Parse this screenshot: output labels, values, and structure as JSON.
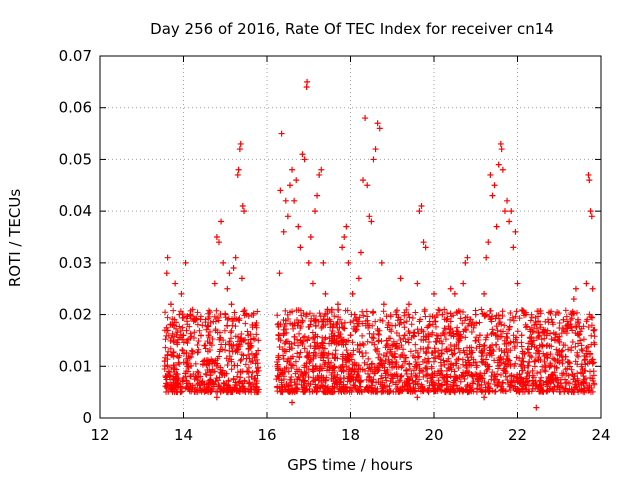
{
  "chart_data": {
    "type": "scatter",
    "title": "Day 256 of 2016, Rate Of TEC Index for receiver cn14",
    "xlabel": "GPS time / hours",
    "ylabel": "ROTI / TECUs",
    "xlim": [
      12,
      24
    ],
    "ylim": [
      0,
      0.07
    ],
    "x_ticks": [
      12,
      14,
      16,
      18,
      20,
      22,
      24
    ],
    "x_tick_labels": [
      "12",
      "14",
      "16",
      "18",
      "20",
      "22",
      "24"
    ],
    "y_ticks": [
      0,
      0.01,
      0.02,
      0.03,
      0.04,
      0.05,
      0.06,
      0.07
    ],
    "y_tick_labels": [
      "0",
      "0.01",
      "0.02",
      "0.03",
      "0.04",
      "0.05",
      "0.06",
      "0.07"
    ],
    "grid": true,
    "marker": "+",
    "series": [
      {
        "name": "ROTI",
        "color": "#ff0000",
        "points": [
          [
            13.55,
            0.011
          ],
          [
            13.6,
            0.028
          ],
          [
            13.62,
            0.031
          ],
          [
            13.65,
            0.009
          ],
          [
            13.7,
            0.022
          ],
          [
            13.75,
            0.018
          ],
          [
            13.8,
            0.026
          ],
          [
            13.85,
            0.012
          ],
          [
            13.9,
            0.02
          ],
          [
            13.95,
            0.024
          ],
          [
            14.0,
            0.016
          ],
          [
            14.05,
            0.03
          ],
          [
            14.1,
            0.01
          ],
          [
            14.2,
            0.013
          ],
          [
            14.3,
            0.019
          ],
          [
            14.4,
            0.008
          ],
          [
            14.5,
            0.014
          ],
          [
            14.6,
            0.016
          ],
          [
            14.7,
            0.011
          ],
          [
            14.75,
            0.026
          ],
          [
            14.8,
            0.035
          ],
          [
            14.85,
            0.034
          ],
          [
            14.9,
            0.038
          ],
          [
            14.95,
            0.03
          ],
          [
            15.0,
            0.02
          ],
          [
            15.05,
            0.025
          ],
          [
            15.1,
            0.028
          ],
          [
            15.15,
            0.022
          ],
          [
            15.2,
            0.029
          ],
          [
            15.25,
            0.031
          ],
          [
            15.3,
            0.047
          ],
          [
            15.32,
            0.048
          ],
          [
            15.35,
            0.052
          ],
          [
            15.37,
            0.053
          ],
          [
            15.4,
            0.027
          ],
          [
            15.42,
            0.041
          ],
          [
            15.45,
            0.04
          ],
          [
            15.5,
            0.02
          ],
          [
            15.55,
            0.016
          ],
          [
            15.6,
            0.014
          ],
          [
            15.65,
            0.018
          ],
          [
            15.7,
            0.012
          ],
          [
            15.75,
            0.009
          ],
          [
            16.25,
            0.01
          ],
          [
            16.3,
            0.028
          ],
          [
            16.32,
            0.044
          ],
          [
            16.35,
            0.055
          ],
          [
            16.4,
            0.036
          ],
          [
            16.45,
            0.042
          ],
          [
            16.5,
            0.039
          ],
          [
            16.55,
            0.045
          ],
          [
            16.6,
            0.048
          ],
          [
            16.65,
            0.042
          ],
          [
            16.7,
            0.046
          ],
          [
            16.75,
            0.037
          ],
          [
            16.8,
            0.033
          ],
          [
            16.85,
            0.051
          ],
          [
            16.9,
            0.05
          ],
          [
            16.95,
            0.064
          ],
          [
            16.96,
            0.065
          ],
          [
            17.0,
            0.03
          ],
          [
            17.05,
            0.035
          ],
          [
            17.1,
            0.026
          ],
          [
            17.15,
            0.04
          ],
          [
            17.2,
            0.043
          ],
          [
            17.25,
            0.047
          ],
          [
            17.3,
            0.048
          ],
          [
            17.35,
            0.03
          ],
          [
            17.4,
            0.024
          ],
          [
            17.45,
            0.021
          ],
          [
            17.5,
            0.019
          ],
          [
            17.6,
            0.015
          ],
          [
            17.7,
            0.022
          ],
          [
            17.8,
            0.033
          ],
          [
            17.85,
            0.035
          ],
          [
            17.9,
            0.037
          ],
          [
            17.95,
            0.03
          ],
          [
            18.0,
            0.016
          ],
          [
            18.05,
            0.024
          ],
          [
            18.1,
            0.02
          ],
          [
            18.15,
            0.019
          ],
          [
            18.2,
            0.027
          ],
          [
            18.25,
            0.032
          ],
          [
            18.3,
            0.046
          ],
          [
            18.35,
            0.058
          ],
          [
            18.4,
            0.045
          ],
          [
            18.45,
            0.039
          ],
          [
            18.5,
            0.038
          ],
          [
            18.55,
            0.05
          ],
          [
            18.6,
            0.052
          ],
          [
            18.65,
            0.057
          ],
          [
            18.7,
            0.056
          ],
          [
            18.75,
            0.03
          ],
          [
            18.8,
            0.022
          ],
          [
            18.9,
            0.018
          ],
          [
            19.0,
            0.014
          ],
          [
            19.1,
            0.02
          ],
          [
            19.2,
            0.027
          ],
          [
            19.3,
            0.016
          ],
          [
            19.4,
            0.022
          ],
          [
            19.5,
            0.012
          ],
          [
            19.6,
            0.026
          ],
          [
            19.65,
            0.04
          ],
          [
            19.7,
            0.041
          ],
          [
            19.75,
            0.034
          ],
          [
            19.8,
            0.033
          ],
          [
            19.9,
            0.018
          ],
          [
            20.0,
            0.024
          ],
          [
            20.1,
            0.012
          ],
          [
            20.2,
            0.02
          ],
          [
            20.3,
            0.019
          ],
          [
            20.4,
            0.025
          ],
          [
            20.5,
            0.024
          ],
          [
            20.6,
            0.016
          ],
          [
            20.7,
            0.026
          ],
          [
            20.75,
            0.03
          ],
          [
            20.8,
            0.031
          ],
          [
            20.9,
            0.018
          ],
          [
            21.0,
            0.02
          ],
          [
            21.1,
            0.016
          ],
          [
            21.2,
            0.024
          ],
          [
            21.25,
            0.031
          ],
          [
            21.3,
            0.034
          ],
          [
            21.35,
            0.047
          ],
          [
            21.4,
            0.043
          ],
          [
            21.45,
            0.045
          ],
          [
            21.5,
            0.037
          ],
          [
            21.55,
            0.049
          ],
          [
            21.6,
            0.053
          ],
          [
            21.62,
            0.052
          ],
          [
            21.65,
            0.048
          ],
          [
            21.7,
            0.04
          ],
          [
            21.75,
            0.042
          ],
          [
            21.8,
            0.038
          ],
          [
            21.85,
            0.04
          ],
          [
            21.9,
            0.033
          ],
          [
            21.95,
            0.036
          ],
          [
            22.0,
            0.026
          ],
          [
            22.1,
            0.016
          ],
          [
            22.2,
            0.02
          ],
          [
            22.3,
            0.012
          ],
          [
            22.4,
            0.018
          ],
          [
            22.5,
            0.006
          ],
          [
            22.6,
            0.014
          ],
          [
            22.7,
            0.016
          ],
          [
            22.8,
            0.01
          ],
          [
            22.9,
            0.015
          ],
          [
            23.0,
            0.013
          ],
          [
            23.1,
            0.019
          ],
          [
            23.2,
            0.018
          ],
          [
            23.3,
            0.02
          ],
          [
            23.35,
            0.023
          ],
          [
            23.4,
            0.025
          ],
          [
            23.45,
            0.019
          ],
          [
            23.5,
            0.015
          ],
          [
            23.55,
            0.013
          ],
          [
            23.6,
            0.012
          ],
          [
            23.65,
            0.026
          ],
          [
            23.7,
            0.047
          ],
          [
            23.72,
            0.046
          ],
          [
            23.75,
            0.04
          ],
          [
            23.78,
            0.039
          ],
          [
            23.8,
            0.025
          ],
          [
            23.82,
            0.017
          ],
          [
            22.45,
            0.002
          ],
          [
            16.6,
            0.003
          ],
          [
            19.6,
            0.004
          ],
          [
            14.8,
            0.004
          ],
          [
            17.4,
            0.005
          ],
          [
            21.2,
            0.004
          ],
          [
            20.5,
            0.005
          ],
          [
            13.8,
            0.006
          ],
          [
            15.4,
            0.006
          ],
          [
            18.8,
            0.006
          ],
          [
            23.3,
            0.005
          ],
          [
            16.9,
            0.007
          ],
          [
            19.2,
            0.008
          ],
          [
            22.0,
            0.007
          ]
        ]
      }
    ]
  }
}
